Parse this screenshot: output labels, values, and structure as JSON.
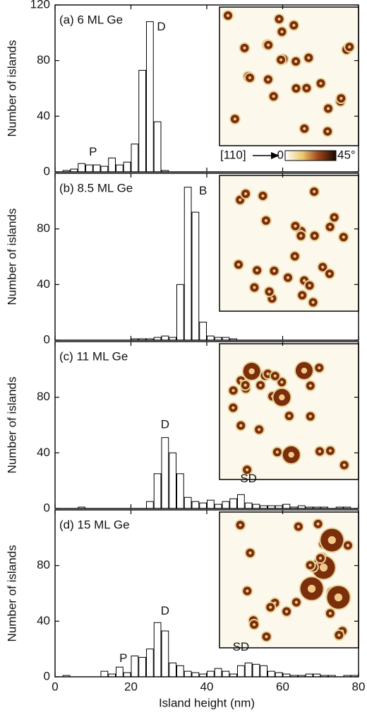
{
  "chart_data": [
    {
      "type": "histogram",
      "title": "(a) 6 ML Ge",
      "ylabel": "Number of islands",
      "bins": [
        0,
        2,
        4,
        6,
        8,
        10,
        12,
        14,
        16,
        18,
        20,
        22,
        24,
        26,
        28,
        30,
        32,
        34,
        36,
        38,
        40,
        42,
        44,
        46,
        48,
        50,
        52,
        54,
        56,
        58,
        60,
        62,
        64,
        66,
        68,
        70,
        72,
        74,
        76,
        78,
        80
      ],
      "values": [
        0,
        1,
        2,
        6,
        5,
        5,
        4,
        10,
        5,
        7,
        20,
        73,
        108,
        36,
        1,
        0,
        0,
        0,
        0,
        0,
        0,
        0,
        0,
        0,
        0,
        0,
        0,
        0,
        0,
        0,
        0,
        0,
        0,
        0,
        0,
        0,
        0,
        0,
        0,
        0
      ],
      "xlim": [
        0,
        80
      ],
      "xticks": [
        0,
        20,
        40,
        60,
        80
      ],
      "ylim": [
        0,
        120
      ],
      "yticks": [
        0,
        40,
        80,
        120
      ],
      "annotations": [
        "P",
        "D"
      ],
      "colorbar": {
        "direction": "[110]",
        "ticks": [
          0,
          {
            "value": 45,
            "label": "45°"
          }
        ]
      }
    },
    {
      "type": "histogram",
      "title": "(b) 8.5 ML Ge",
      "ylabel": "Number of islands",
      "bins": [
        0,
        2,
        4,
        6,
        8,
        10,
        12,
        14,
        16,
        18,
        20,
        22,
        24,
        26,
        28,
        30,
        32,
        34,
        36,
        38,
        40,
        42,
        44,
        46,
        48,
        50,
        52,
        54,
        56,
        58,
        60,
        62,
        64,
        66,
        68,
        70,
        72,
        74,
        76,
        78,
        80
      ],
      "values": [
        0,
        0,
        0,
        0,
        0,
        0,
        0,
        0,
        0,
        0,
        1,
        1,
        1,
        2,
        3,
        2,
        40,
        110,
        92,
        13,
        3,
        2,
        2,
        1,
        0,
        0,
        0,
        0,
        0,
        0,
        0,
        0,
        0,
        0,
        0,
        0,
        0,
        0,
        0,
        0
      ],
      "xlim": [
        0,
        80
      ],
      "xticks": [
        0,
        20,
        40,
        60,
        80
      ],
      "ylim": [
        0,
        120
      ],
      "yticks": [
        0,
        40,
        80
      ],
      "annotations": [
        "B"
      ]
    },
    {
      "type": "histogram",
      "title": "(c) 11 ML Ge",
      "ylabel": "Number of islands",
      "bins": [
        0,
        2,
        4,
        6,
        8,
        10,
        12,
        14,
        16,
        18,
        20,
        22,
        24,
        26,
        28,
        30,
        32,
        34,
        36,
        38,
        40,
        42,
        44,
        46,
        48,
        50,
        52,
        54,
        56,
        58,
        60,
        62,
        64,
        66,
        68,
        70,
        72,
        74,
        76,
        78,
        80
      ],
      "values": [
        0,
        0,
        0,
        1,
        0,
        0,
        0,
        0,
        0,
        0,
        0,
        0,
        5,
        25,
        51,
        40,
        25,
        8,
        5,
        4,
        6,
        3,
        5,
        7,
        10,
        4,
        3,
        2,
        2,
        2,
        3,
        1,
        2,
        1,
        1,
        1,
        0,
        1,
        1,
        0
      ],
      "xlim": [
        0,
        80
      ],
      "xticks": [
        0,
        20,
        40,
        60,
        80
      ],
      "ylim": [
        0,
        120
      ],
      "yticks": [
        0,
        40,
        80
      ],
      "annotations": [
        "D",
        "SD"
      ]
    },
    {
      "type": "histogram",
      "title": "(d) 15 ML Ge",
      "ylabel": "Number of islands",
      "xlabel": "Island height (nm)",
      "bins": [
        0,
        2,
        4,
        6,
        8,
        10,
        12,
        14,
        16,
        18,
        20,
        22,
        24,
        26,
        28,
        30,
        32,
        34,
        36,
        38,
        40,
        42,
        44,
        46,
        48,
        50,
        52,
        54,
        56,
        58,
        60,
        62,
        64,
        66,
        68,
        70,
        72,
        74,
        76,
        78,
        80
      ],
      "values": [
        0,
        1,
        0,
        0,
        0,
        0,
        4,
        2,
        7,
        3,
        15,
        14,
        20,
        39,
        33,
        10,
        8,
        4,
        3,
        2,
        4,
        6,
        4,
        2,
        8,
        10,
        9,
        8,
        4,
        3,
        2,
        1,
        1,
        2,
        2,
        1,
        1,
        0,
        1,
        1
      ],
      "xlim": [
        0,
        80
      ],
      "xticks": [
        0,
        20,
        40,
        60,
        80
      ],
      "ylim": [
        0,
        120
      ],
      "yticks": [
        0,
        40,
        80
      ],
      "annotations": [
        "P",
        "D",
        "SD"
      ]
    }
  ]
}
